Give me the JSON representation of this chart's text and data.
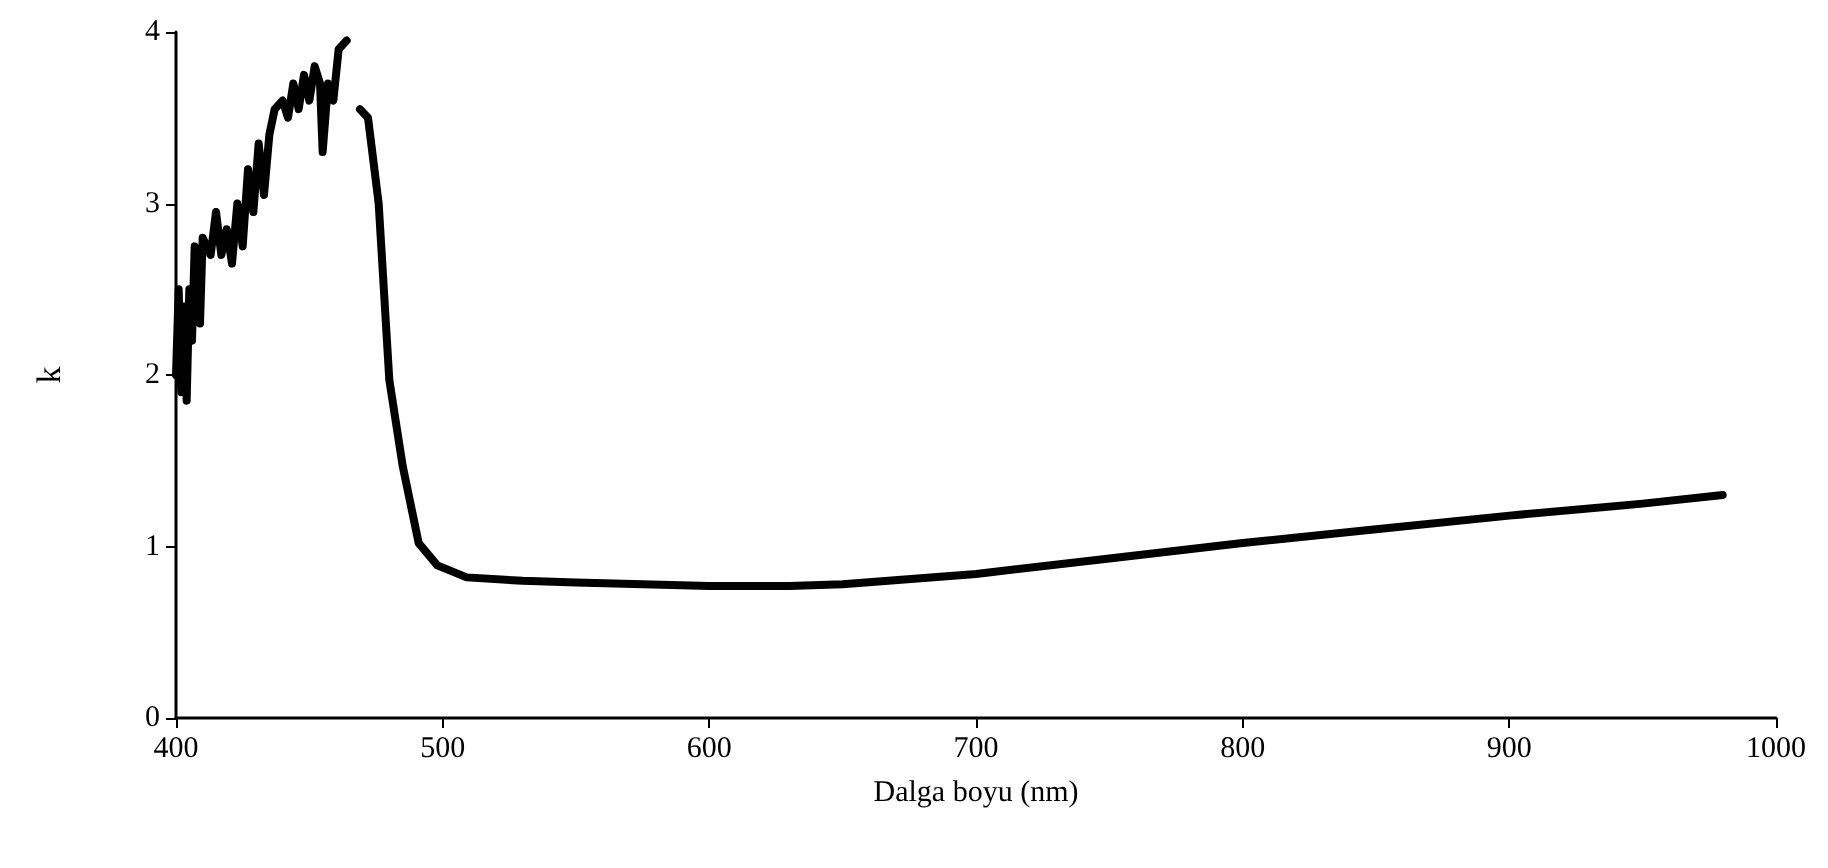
{
  "chart_data": {
    "type": "line",
    "xlabel": "Dalga boyu (nm)",
    "ylabel": "k",
    "xlim": [
      400,
      1000
    ],
    "xticks": [
      400,
      500,
      600,
      700,
      800,
      900,
      1000
    ],
    "ylim": [
      0,
      4
    ],
    "yticks": [
      0,
      1,
      2,
      3,
      4
    ],
    "marker": "none",
    "line_style": "solid",
    "series": [
      {
        "color": "#000000",
        "x": [
          400,
          401,
          402,
          403,
          404,
          405,
          406,
          407,
          409,
          410,
          413,
          415,
          417,
          419,
          421,
          423,
          425,
          427,
          429,
          431,
          433,
          435,
          437,
          440,
          442,
          444,
          446,
          448,
          450,
          452,
          454,
          455,
          457,
          459,
          461,
          464,
          466,
          469,
          472,
          476,
          480,
          485,
          491,
          498,
          509,
          530,
          550,
          600,
          630,
          650,
          700,
          750,
          800,
          850,
          900,
          950,
          980
        ],
        "values": [
          2.0,
          2.5,
          1.9,
          2.4,
          1.85,
          2.5,
          2.2,
          2.75,
          2.3,
          2.8,
          2.7,
          2.95,
          2.7,
          2.85,
          2.65,
          3.0,
          2.75,
          3.2,
          2.95,
          3.35,
          3.05,
          3.4,
          3.55,
          3.6,
          3.5,
          3.7,
          3.55,
          3.75,
          3.6,
          3.8,
          3.7,
          3.3,
          3.7,
          3.6,
          3.9,
          3.95,
          null,
          3.55,
          3.5,
          3.0,
          1.97,
          1.47,
          1.02,
          0.89,
          0.82,
          0.8,
          0.79,
          0.77,
          0.77,
          0.78,
          0.84,
          0.93,
          1.02,
          1.1,
          1.18,
          1.25,
          1.3
        ]
      }
    ]
  }
}
